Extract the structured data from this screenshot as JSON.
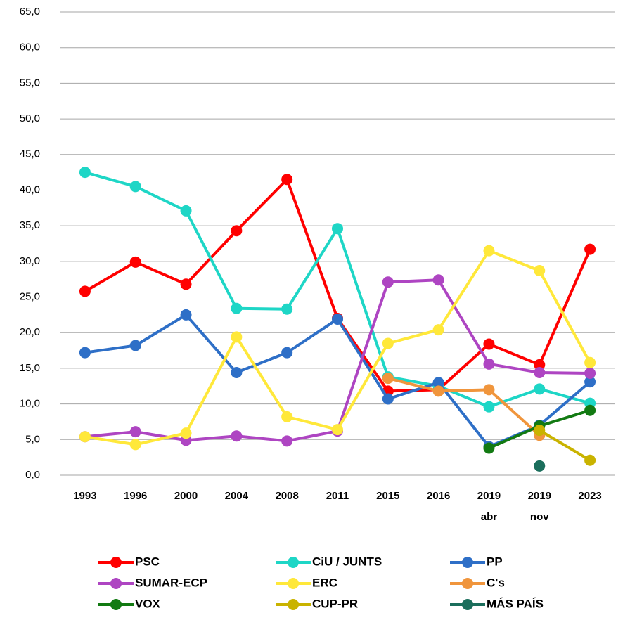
{
  "chart_data": {
    "type": "line",
    "categories": [
      "1993",
      "1996",
      "2000",
      "2004",
      "2008",
      "2011",
      "2015",
      "2016",
      "2019\nabr",
      "2019\nnov",
      "2023"
    ],
    "series": [
      {
        "name": "PSC",
        "color": "#ff0000",
        "values": [
          25.8,
          29.9,
          26.8,
          34.3,
          41.5,
          22.0,
          11.8,
          12.0,
          18.4,
          15.5,
          31.7
        ]
      },
      {
        "name": "CiU / JUNTS",
        "color": "#1ed6c6",
        "values": [
          42.5,
          40.5,
          37.1,
          23.4,
          23.3,
          34.6,
          13.8,
          12.5,
          9.6,
          12.1,
          10.1
        ]
      },
      {
        "name": "PP",
        "color": "#2e6fc7",
        "values": [
          17.2,
          18.2,
          22.5,
          14.4,
          17.2,
          21.9,
          10.7,
          13.0,
          4.0,
          7.0,
          13.1
        ]
      },
      {
        "name": "SUMAR-ECP",
        "color": "#ae45c2",
        "values": [
          5.4,
          6.1,
          4.9,
          5.5,
          4.8,
          6.2,
          27.1,
          27.4,
          15.6,
          14.4,
          14.3
        ]
      },
      {
        "name": "ERC",
        "color": "#ffe83a",
        "values": [
          5.4,
          4.3,
          5.9,
          19.4,
          8.2,
          6.4,
          18.5,
          20.4,
          31.5,
          28.7,
          15.8
        ]
      },
      {
        "name": "C's",
        "color": "#f0953c",
        "values": [
          null,
          null,
          null,
          null,
          null,
          null,
          13.6,
          11.8,
          12.0,
          5.6,
          null
        ]
      },
      {
        "name": "VOX",
        "color": "#127a12",
        "values": [
          null,
          null,
          null,
          null,
          null,
          null,
          null,
          null,
          3.8,
          6.9,
          9.1
        ]
      },
      {
        "name": "CUP-PR",
        "color": "#c9b300",
        "values": [
          null,
          null,
          null,
          null,
          null,
          null,
          null,
          null,
          null,
          6.3,
          2.1
        ]
      },
      {
        "name": "MÁS PAÍS",
        "color": "#1b6e5c",
        "values": [
          null,
          null,
          null,
          null,
          null,
          null,
          null,
          null,
          null,
          1.3,
          null
        ]
      }
    ],
    "ylim": [
      0,
      65
    ],
    "yticks": [
      {
        "value": 0,
        "label": "0,0"
      },
      {
        "value": 5,
        "label": "5,0"
      },
      {
        "value": 10,
        "label": "10,0"
      },
      {
        "value": 15,
        "label": "15,0"
      },
      {
        "value": 20,
        "label": "20,0"
      },
      {
        "value": 25,
        "label": "25,0"
      },
      {
        "value": 30,
        "label": "30,0"
      },
      {
        "value": 35,
        "label": "35,0"
      },
      {
        "value": 40,
        "label": "40,0"
      },
      {
        "value": 45,
        "label": "45,0"
      },
      {
        "value": 50,
        "label": "50,0"
      },
      {
        "value": 55,
        "label": "55,0"
      },
      {
        "value": 60,
        "label": "60,0"
      },
      {
        "value": 65,
        "label": "65,0"
      }
    ],
    "grid": true,
    "legend": "bottom"
  }
}
